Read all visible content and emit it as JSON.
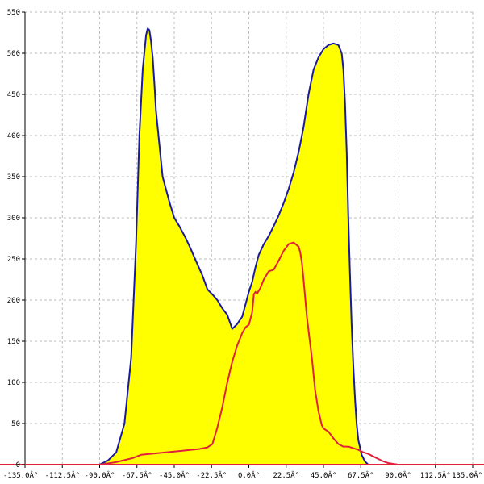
{
  "chart_data": {
    "type": "area",
    "title": "",
    "xlabel": "",
    "ylabel": "",
    "xlim": [
      -135,
      135
    ],
    "ylim": [
      0,
      550
    ],
    "x_ticks": [
      -135,
      -112.5,
      -90,
      -67.5,
      -45,
      -22.5,
      0,
      22.5,
      45,
      67.5,
      90,
      112.5,
      135
    ],
    "x_tick_labels": [
      "-135.0Â°",
      "-112.5Â°",
      "-90.0Â°",
      "-67.5Â°",
      "-45.0Â°",
      "-22.5Â°",
      "0.0Â°",
      "22.5Â°",
      "45.0Â°",
      "67.5Â°",
      "90.0Â°",
      "112.5Â°",
      "135.0Â°"
    ],
    "y_ticks": [
      0,
      50,
      100,
      150,
      200,
      250,
      300,
      350,
      400,
      450,
      500,
      550
    ],
    "y_tick_labels": [
      "0",
      "50",
      "100",
      "150",
      "200",
      "250",
      "300",
      "350",
      "400",
      "450",
      "500",
      "550"
    ],
    "grid": true,
    "colors": {
      "fill": "#ffff00",
      "outline": "#1a1aa0",
      "second_series": "#e0203c",
      "grid": "#bbbbbb",
      "axis": "#000000",
      "baseline": "#e0203c"
    },
    "series": [
      {
        "style": "filled-area",
        "x": [
          -90,
          -85,
          -80,
          -75,
          -71,
          -68,
          -66,
          -64,
          -62,
          -61,
          -60,
          -59,
          -58,
          -57,
          -56,
          -54,
          -52,
          -50,
          -48,
          -45,
          -42,
          -38,
          -35,
          -32,
          -28,
          -25,
          -22,
          -19,
          -16,
          -13,
          -10,
          -7,
          -4,
          -2,
          0,
          2,
          4,
          6,
          9,
          12,
          15,
          18,
          21,
          24,
          27,
          30,
          33,
          36,
          39,
          42,
          45,
          48,
          51,
          54,
          56,
          57,
          58,
          59,
          60,
          61,
          62,
          63,
          64,
          65,
          66,
          68,
          70,
          72,
          75,
          78,
          81,
          84,
          87,
          90
        ],
        "y": [
          0,
          5,
          15,
          50,
          130,
          270,
          400,
          480,
          522,
          530,
          528,
          515,
          495,
          465,
          430,
          390,
          350,
          335,
          320,
          300,
          290,
          275,
          262,
          248,
          230,
          213,
          207,
          200,
          190,
          182,
          165,
          171,
          180,
          195,
          210,
          222,
          240,
          255,
          268,
          278,
          290,
          303,
          318,
          335,
          355,
          380,
          410,
          450,
          480,
          495,
          505,
          510,
          512,
          510,
          500,
          480,
          440,
          380,
          300,
          230,
          170,
          120,
          80,
          50,
          30,
          12,
          4,
          0,
          0,
          0,
          0,
          0,
          0,
          0
        ]
      },
      {
        "style": "line",
        "x": [
          -90,
          -80,
          -70,
          -65,
          -60,
          -55,
          -50,
          -45,
          -40,
          -35,
          -30,
          -25,
          -22,
          -19,
          -16,
          -13,
          -10,
          -7,
          -4,
          -2,
          0,
          2,
          3,
          4,
          5,
          7,
          9,
          12,
          15,
          18,
          21,
          24,
          27,
          30,
          31,
          32,
          33,
          35,
          38,
          40,
          42,
          44,
          45,
          48,
          51,
          54,
          57,
          60,
          63,
          66,
          69,
          72,
          75,
          78,
          81,
          84,
          87,
          90
        ],
        "y": [
          0,
          3,
          8,
          12,
          13,
          14,
          15,
          16,
          17,
          18,
          19,
          21,
          25,
          45,
          70,
          100,
          125,
          145,
          160,
          167,
          170,
          185,
          207,
          210,
          208,
          215,
          225,
          235,
          237,
          248,
          260,
          268,
          270,
          265,
          258,
          245,
          225,
          180,
          130,
          90,
          65,
          48,
          44,
          40,
          32,
          25,
          22,
          22,
          20,
          18,
          15,
          13,
          10,
          7,
          4,
          2,
          1,
          0
        ]
      }
    ]
  }
}
